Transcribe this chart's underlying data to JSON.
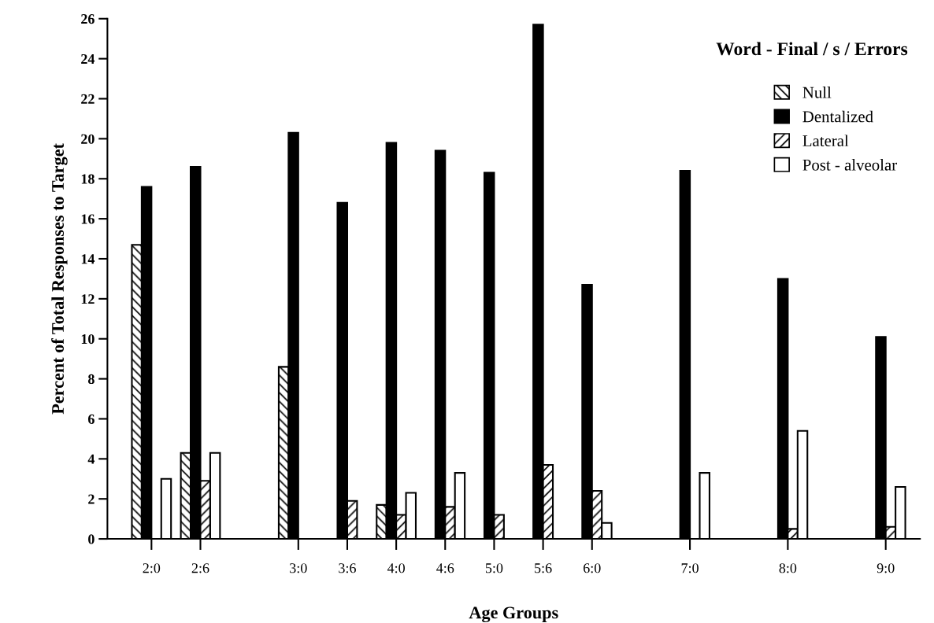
{
  "chart_data": {
    "type": "bar",
    "title": "Word - Final / s / Errors",
    "xlabel": "Age Groups",
    "ylabel": "Percent of Total Responses to Target",
    "categories": [
      "2:0",
      "2:6",
      null,
      "3:0",
      "3:6",
      "4:0",
      "4:6",
      "5:0",
      "5:6",
      "6:0",
      null,
      "7:0",
      null,
      "8:0",
      null,
      "9:0"
    ],
    "series": [
      {
        "name": "Null",
        "color": "#ffffff",
        "values": [
          14.7,
          4.3,
          null,
          8.6,
          0,
          1.7,
          0,
          0,
          0,
          0,
          null,
          0,
          null,
          0,
          null,
          0
        ]
      },
      {
        "name": "Dentalized",
        "color": "#000000",
        "values": [
          17.6,
          18.6,
          null,
          20.3,
          16.8,
          19.8,
          19.4,
          18.3,
          25.7,
          12.7,
          null,
          18.4,
          null,
          13.0,
          null,
          10.1
        ]
      },
      {
        "name": "Lateral",
        "color": "#ffffff",
        "values": [
          0,
          2.9,
          null,
          0,
          1.9,
          1.2,
          1.6,
          1.2,
          3.7,
          2.4,
          null,
          0,
          null,
          0.5,
          null,
          0.6
        ]
      },
      {
        "name": "Post - alveolar",
        "color": "#ffffff",
        "values": [
          3.0,
          4.3,
          null,
          0,
          0,
          2.3,
          3.3,
          0,
          0,
          0.8,
          null,
          3.3,
          null,
          5.4,
          null,
          2.6
        ]
      }
    ],
    "ylim": [
      0,
      26
    ],
    "yticks": [
      0,
      2,
      4,
      6,
      8,
      10,
      12,
      14,
      16,
      18,
      20,
      22,
      24,
      26
    ],
    "grid": false,
    "legend": "top right"
  }
}
